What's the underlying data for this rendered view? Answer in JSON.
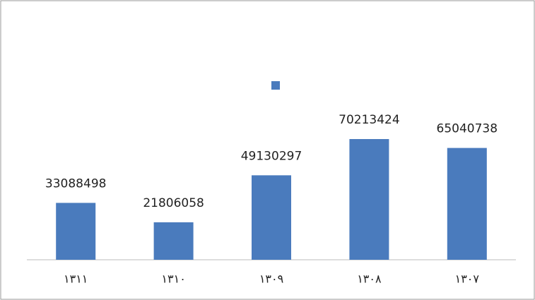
{
  "chart_data": {
    "type": "bar",
    "categories": [
      "۱۳۱۱",
      "۱۳۱۰",
      "۱۳۰۹",
      "۱۳۰۸",
      "۱۳۰۷"
    ],
    "values": [
      33088498,
      21806058,
      49130297,
      70213424,
      65040738
    ],
    "color": "#4a7bbd"
  }
}
